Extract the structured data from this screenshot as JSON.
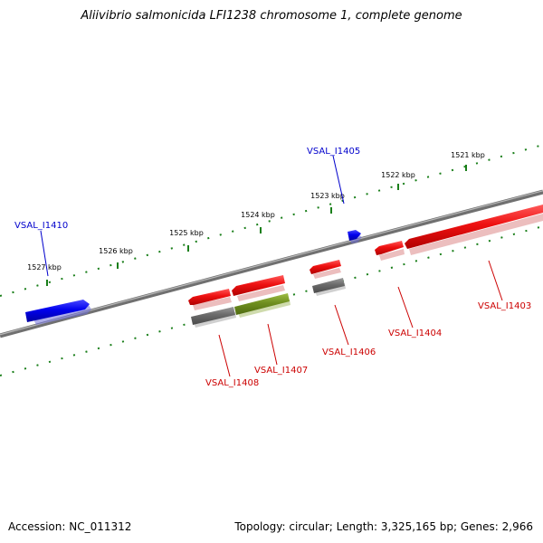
{
  "title": "Aliivibrio salmonicida LFI1238 chromosome 1, complete genome",
  "footer": {
    "accession": "Accession: NC_011312",
    "summary": "Topology: circular; Length: 3,325,165 bp; Genes: 2,966"
  },
  "colors": {
    "backbone": "#808080",
    "tick": "#1a7f1a",
    "blue_gene": "#0000ee",
    "red_gene": "#ee1111",
    "gray_gene": "#666666",
    "olive_gene": "#6f8f1f",
    "label_blue": "#0000cc",
    "label_red": "#cc0000"
  },
  "ticks": [
    {
      "label": "1521 kbp"
    },
    {
      "label": "1522 kbp"
    },
    {
      "label": "1523 kbp"
    },
    {
      "label": "1524 kbp"
    },
    {
      "label": "1525 kbp"
    },
    {
      "label": "1526 kbp"
    },
    {
      "label": "1527 kbp"
    }
  ],
  "genes": [
    {
      "label": "VSAL_I1403",
      "color": "red"
    },
    {
      "label": "VSAL_I1404",
      "color": "red"
    },
    {
      "label": "VSAL_I1405",
      "color": "blue"
    },
    {
      "label": "VSAL_I1406",
      "color": "red"
    },
    {
      "label": "VSAL_I1407",
      "color": "red"
    },
    {
      "label": "VSAL_I1408",
      "color": "red"
    },
    {
      "label": "VSAL_I1410",
      "color": "blue"
    }
  ]
}
